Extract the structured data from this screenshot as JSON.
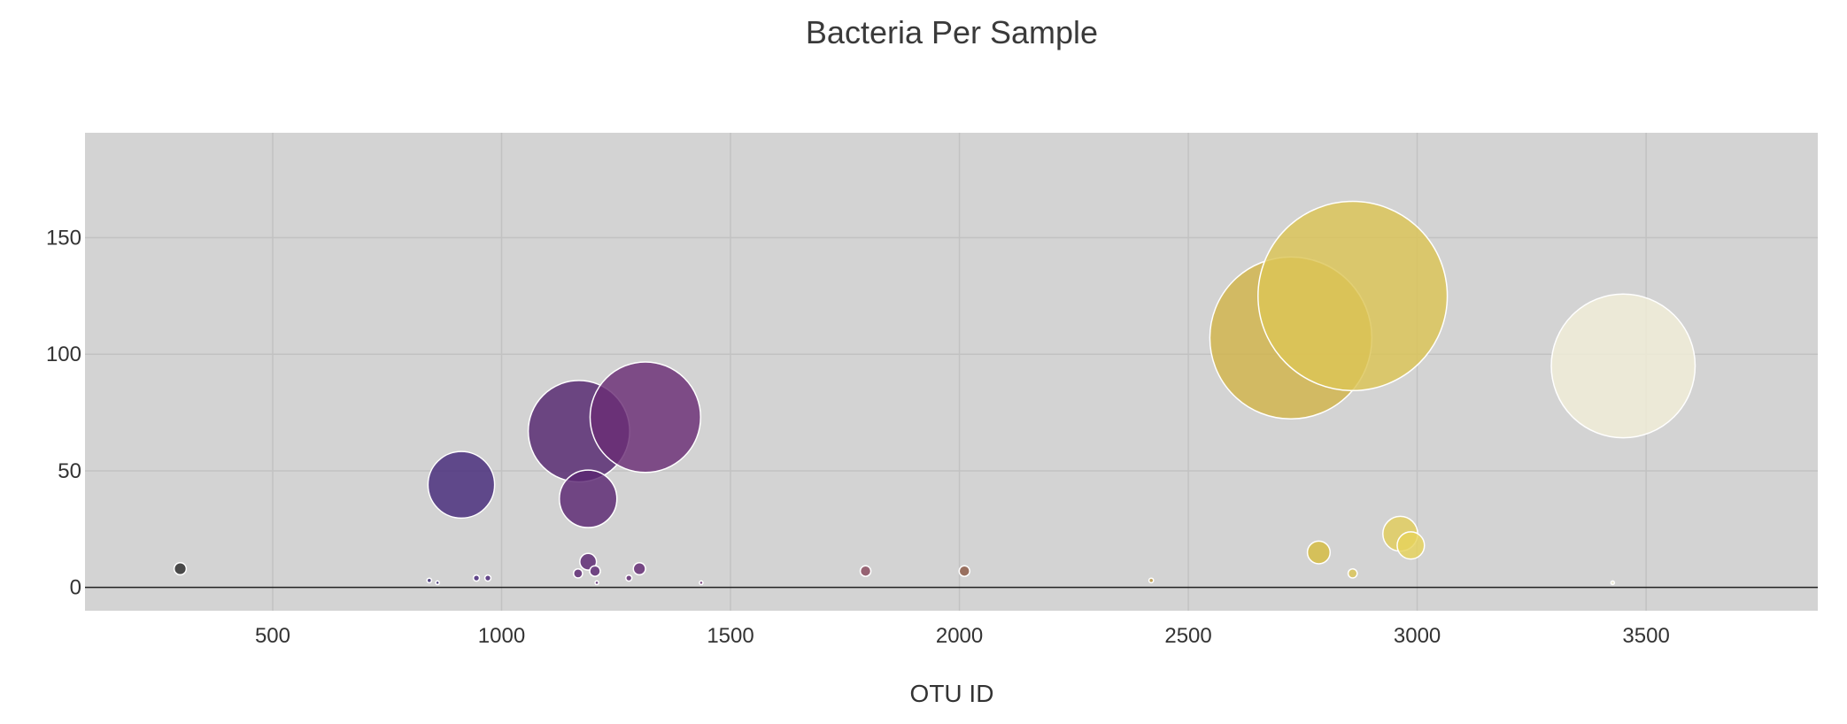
{
  "chart_data": {
    "type": "scatter",
    "subtype": "bubble",
    "title": "Bacteria Per Sample",
    "xlabel": "OTU ID",
    "ylabel": "",
    "xlim": [
      90,
      3875
    ],
    "ylim": [
      -10,
      195
    ],
    "x_ticks": [
      500,
      1000,
      1500,
      2000,
      2500,
      3000,
      3500
    ],
    "y_ticks": [
      0,
      50,
      100,
      150
    ],
    "grid": true,
    "legend": "none",
    "plot_background": "#d3d3d3",
    "zero_line_color": "#222222",
    "points": [
      {
        "x": 298,
        "y": 8,
        "size": 8,
        "color": "#2b2b2b"
      },
      {
        "x": 842,
        "y": 3,
        "size": 3,
        "color": "#3a2a70"
      },
      {
        "x": 860,
        "y": 2,
        "size": 2,
        "color": "#3a2a70"
      },
      {
        "x": 912,
        "y": 44,
        "size": 44,
        "color": "#45297a"
      },
      {
        "x": 945,
        "y": 4,
        "size": 4,
        "color": "#47277a"
      },
      {
        "x": 970,
        "y": 4,
        "size": 4,
        "color": "#4a2679"
      },
      {
        "x": 1167,
        "y": 6,
        "size": 6,
        "color": "#5a2670"
      },
      {
        "x": 1169,
        "y": 67,
        "size": 67,
        "color": "#54266f"
      },
      {
        "x": 1189,
        "y": 11,
        "size": 11,
        "color": "#5a2671"
      },
      {
        "x": 1189,
        "y": 38,
        "size": 38,
        "color": "#5a2672"
      },
      {
        "x": 1204,
        "y": 7,
        "size": 7,
        "color": "#5a2672"
      },
      {
        "x": 1208,
        "y": 2,
        "size": 2,
        "color": "#5c2672"
      },
      {
        "x": 1278,
        "y": 4,
        "size": 4,
        "color": "#5f2772"
      },
      {
        "x": 1301,
        "y": 8,
        "size": 8,
        "color": "#622873"
      },
      {
        "x": 1314,
        "y": 73,
        "size": 73,
        "color": "#6a2d75"
      },
      {
        "x": 1436,
        "y": 2,
        "size": 2,
        "color": "#6f2f74"
      },
      {
        "x": 1795,
        "y": 7,
        "size": 7,
        "color": "#8a4a5e"
      },
      {
        "x": 2011,
        "y": 7,
        "size": 7,
        "color": "#8c5a46"
      },
      {
        "x": 2419,
        "y": 3,
        "size": 3,
        "color": "#c09a40"
      },
      {
        "x": 2724,
        "y": 107,
        "size": 107,
        "color": "#d2b54a"
      },
      {
        "x": 2785,
        "y": 15,
        "size": 15,
        "color": "#d6bc40"
      },
      {
        "x": 2859,
        "y": 125,
        "size": 125,
        "color": "#dcc555"
      },
      {
        "x": 2859,
        "y": 6,
        "size": 6,
        "color": "#dcc555"
      },
      {
        "x": 2963,
        "y": 23,
        "size": 23,
        "color": "#e2cd5c"
      },
      {
        "x": 2986,
        "y": 18,
        "size": 18,
        "color": "#e6d35c"
      },
      {
        "x": 3427,
        "y": 2,
        "size": 2,
        "color": "#eeeacd"
      },
      {
        "x": 3450,
        "y": 95,
        "size": 95,
        "color": "#f2eed8"
      }
    ]
  }
}
